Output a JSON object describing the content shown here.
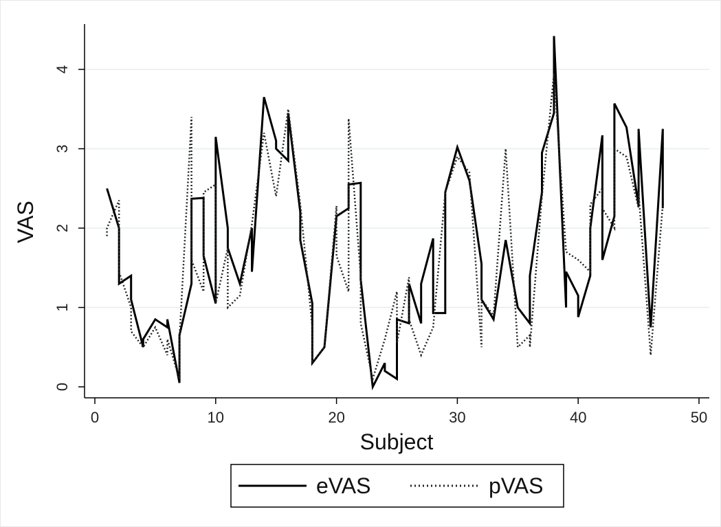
{
  "chart_data": {
    "type": "line",
    "xlabel": "Subject",
    "ylabel": "VAS",
    "xlim": [
      0,
      50
    ],
    "ylim": [
      0,
      4.4
    ],
    "x_ticks": [
      0,
      10,
      20,
      30,
      40,
      50
    ],
    "y_ticks": [
      0,
      1,
      2,
      3,
      4
    ],
    "grid": "horizontal",
    "legend_position": "bottom",
    "series": [
      {
        "name": "eVAS",
        "style": "solid",
        "color": "#000000",
        "points": [
          [
            1,
            2.5
          ],
          [
            2,
            2.0
          ],
          [
            2,
            1.3
          ],
          [
            3,
            1.4
          ],
          [
            3,
            1.1
          ],
          [
            4,
            0.5
          ],
          [
            4,
            0.6
          ],
          [
            5,
            0.85
          ],
          [
            6,
            0.75
          ],
          [
            6,
            0.85
          ],
          [
            7,
            0.05
          ],
          [
            7,
            0.65
          ],
          [
            8,
            1.3
          ],
          [
            8,
            2.37
          ],
          [
            9,
            2.38
          ],
          [
            9,
            1.65
          ],
          [
            10,
            1.05
          ],
          [
            10,
            3.15
          ],
          [
            11,
            2.0
          ],
          [
            11,
            1.75
          ],
          [
            12,
            1.3
          ],
          [
            13,
            2.0
          ],
          [
            13,
            1.45
          ],
          [
            14,
            3.65
          ],
          [
            15,
            3.1
          ],
          [
            15,
            3.0
          ],
          [
            16,
            2.85
          ],
          [
            16,
            3.45
          ],
          [
            17,
            2.2
          ],
          [
            17,
            1.85
          ],
          [
            18,
            1.05
          ],
          [
            18,
            0.3
          ],
          [
            19,
            0.5
          ],
          [
            20,
            2.15
          ],
          [
            21,
            2.25
          ],
          [
            21,
            2.55
          ],
          [
            22,
            2.57
          ],
          [
            22,
            1.35
          ],
          [
            23,
            0.0
          ],
          [
            24,
            0.3
          ],
          [
            24,
            0.2
          ],
          [
            25,
            0.1
          ],
          [
            25,
            0.85
          ],
          [
            26,
            0.8
          ],
          [
            26,
            1.3
          ],
          [
            27,
            0.8
          ],
          [
            27,
            1.3
          ],
          [
            28,
            1.87
          ],
          [
            28,
            0.93
          ],
          [
            29,
            0.93
          ],
          [
            29,
            2.45
          ],
          [
            30,
            3.02
          ],
          [
            31,
            2.6
          ],
          [
            32,
            1.55
          ],
          [
            32,
            1.1
          ],
          [
            33,
            0.85
          ],
          [
            34,
            1.85
          ],
          [
            35,
            1.0
          ],
          [
            36,
            0.8
          ],
          [
            36,
            1.4
          ],
          [
            37,
            2.45
          ],
          [
            37,
            2.95
          ],
          [
            38,
            3.45
          ],
          [
            38,
            4.42
          ],
          [
            39,
            1.0
          ],
          [
            39,
            1.45
          ],
          [
            40,
            1.15
          ],
          [
            40,
            0.88
          ],
          [
            41,
            1.4
          ],
          [
            41,
            2.0
          ],
          [
            42,
            3.17
          ],
          [
            42,
            1.6
          ],
          [
            43,
            2.15
          ],
          [
            43,
            3.57
          ],
          [
            44,
            3.27
          ],
          [
            45,
            2.28
          ],
          [
            45,
            3.25
          ],
          [
            46,
            0.75
          ],
          [
            47,
            3.25
          ],
          [
            47,
            2.25
          ]
        ]
      },
      {
        "name": "pVAS",
        "style": "dotted",
        "color": "#222222",
        "points": [
          [
            1,
            1.9
          ],
          [
            1,
            2.0
          ],
          [
            2,
            2.35
          ],
          [
            2,
            1.45
          ],
          [
            3,
            1.0
          ],
          [
            3,
            0.7
          ],
          [
            4,
            0.5
          ],
          [
            5,
            0.75
          ],
          [
            6,
            0.4
          ],
          [
            6,
            0.6
          ],
          [
            7,
            0.1
          ],
          [
            7,
            0.6
          ],
          [
            8,
            3.4
          ],
          [
            8,
            1.6
          ],
          [
            9,
            1.2
          ],
          [
            9,
            2.45
          ],
          [
            10,
            2.55
          ],
          [
            10,
            1.05
          ],
          [
            11,
            1.75
          ],
          [
            11,
            1.0
          ],
          [
            12,
            1.15
          ],
          [
            13,
            2.05
          ],
          [
            14,
            3.2
          ],
          [
            15,
            2.4
          ],
          [
            16,
            3.5
          ],
          [
            17,
            2.3
          ],
          [
            18,
            0.75
          ],
          [
            18,
            0.3
          ],
          [
            19,
            0.5
          ],
          [
            20,
            2.28
          ],
          [
            20,
            1.65
          ],
          [
            21,
            1.2
          ],
          [
            21,
            3.38
          ],
          [
            22,
            1.4
          ],
          [
            22,
            0.8
          ],
          [
            23,
            0.1
          ],
          [
            24,
            0.6
          ],
          [
            25,
            1.2
          ],
          [
            25,
            0.55
          ],
          [
            26,
            1.38
          ],
          [
            26,
            0.85
          ],
          [
            27,
            0.4
          ],
          [
            28,
            0.75
          ],
          [
            29,
            2.45
          ],
          [
            30,
            2.9
          ],
          [
            31,
            2.7
          ],
          [
            32,
            0.5
          ],
          [
            32,
            1.1
          ],
          [
            33,
            0.9
          ],
          [
            34,
            3.0
          ],
          [
            35,
            0.5
          ],
          [
            36,
            0.65
          ],
          [
            36,
            0.5
          ],
          [
            37,
            2.4
          ],
          [
            38,
            3.95
          ],
          [
            39,
            1.7
          ],
          [
            40,
            1.6
          ],
          [
            41,
            1.45
          ],
          [
            41,
            2.3
          ],
          [
            42,
            2.5
          ],
          [
            42,
            2.25
          ],
          [
            43,
            2.0
          ],
          [
            43,
            3.0
          ],
          [
            44,
            2.9
          ],
          [
            45,
            2.25
          ],
          [
            45,
            2.45
          ],
          [
            46,
            0.4
          ],
          [
            47,
            2.3
          ]
        ]
      }
    ]
  }
}
